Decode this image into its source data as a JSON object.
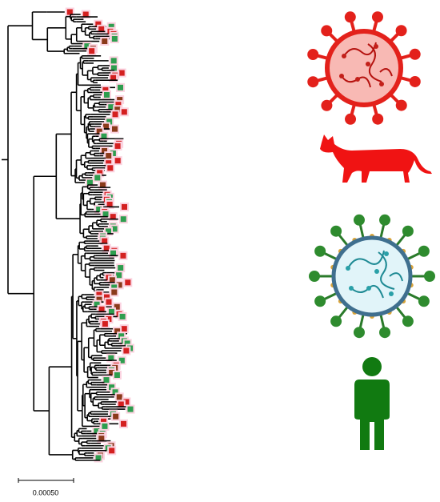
{
  "scale_bar": {
    "label": "0.00050"
  }
}
